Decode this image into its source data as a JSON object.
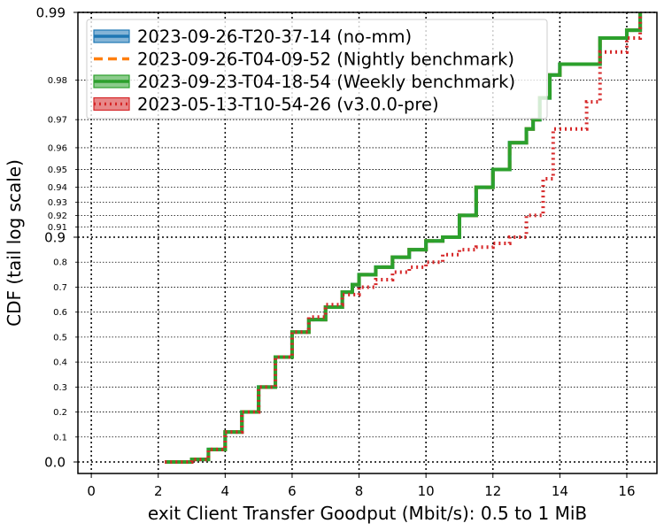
{
  "chart_data": {
    "type": "line",
    "title": "",
    "xlabel": "exit Client Transfer Goodput (Mbit/s): 0.5 to 1 MiB",
    "ylabel": "CDF (tail log scale)",
    "xlim": [
      -0.4,
      16.9
    ],
    "x_ticks": [
      "0",
      "2",
      "4",
      "6",
      "8",
      "10",
      "12",
      "14",
      "16"
    ],
    "y_scale": "tail log",
    "y_ticks_major": [
      "0.0",
      "0.9",
      "0.99"
    ],
    "y_ticks_minor": [
      "0.1",
      "0.2",
      "0.3",
      "0.4",
      "0.5",
      "0.6",
      "0.7",
      "0.8",
      "0.91",
      "0.92",
      "0.93",
      "0.94",
      "0.95",
      "0.96",
      "0.97",
      "0.98"
    ],
    "grid": true,
    "legend_position": "top-left",
    "series": [
      {
        "name": "2023-09-26-T20-37-14 (no-mm)",
        "color": "#1f77b4",
        "style": "solid",
        "x": [
          2.2,
          3.0,
          3.5,
          4.0,
          4.5,
          5.0,
          5.5,
          6.0,
          6.5,
          7.0,
          7.5,
          7.8,
          8.0,
          8.5,
          9.0,
          9.5,
          10.0,
          10.5,
          11.0,
          11.5,
          12.0,
          12.5,
          13.0,
          13.2,
          13.4,
          13.7,
          14.0,
          15.0,
          15.2,
          15.5,
          16.0,
          16.4
        ],
        "y": [
          0.0,
          0.01,
          0.05,
          0.12,
          0.2,
          0.3,
          0.42,
          0.52,
          0.57,
          0.62,
          0.68,
          0.71,
          0.75,
          0.78,
          0.82,
          0.85,
          0.885,
          0.9,
          0.92,
          0.94,
          0.95,
          0.962,
          0.967,
          0.97,
          0.976,
          0.981,
          0.983,
          0.983,
          0.987,
          0.987,
          0.988,
          0.99
        ]
      },
      {
        "name": "2023-09-26-T04-09-52 (Nightly benchmark)",
        "color": "#ff7f0e",
        "style": "dashed",
        "x": [
          2.2,
          3.0,
          3.5,
          4.0,
          4.5,
          5.0,
          5.5,
          6.0,
          6.5,
          7.0,
          7.5,
          7.8,
          8.0,
          8.5,
          9.0,
          9.5,
          10.0,
          10.5,
          11.0,
          11.5,
          12.0,
          12.5,
          13.0,
          13.2,
          13.4,
          13.7,
          14.0,
          15.0,
          15.2,
          15.5,
          16.0,
          16.4
        ],
        "y": [
          0.0,
          0.01,
          0.05,
          0.12,
          0.2,
          0.3,
          0.42,
          0.52,
          0.57,
          0.62,
          0.68,
          0.71,
          0.75,
          0.78,
          0.82,
          0.85,
          0.885,
          0.9,
          0.92,
          0.94,
          0.95,
          0.962,
          0.967,
          0.97,
          0.976,
          0.981,
          0.983,
          0.983,
          0.987,
          0.987,
          0.988,
          0.99
        ]
      },
      {
        "name": "2023-09-23-T04-18-54 (Weekly benchmark)",
        "color": "#2ca02c",
        "style": "dashdot",
        "x": [
          2.2,
          3.0,
          3.5,
          4.0,
          4.5,
          5.0,
          5.5,
          6.0,
          6.5,
          7.0,
          7.5,
          7.8,
          8.0,
          8.5,
          9.0,
          9.5,
          10.0,
          10.5,
          11.0,
          11.5,
          12.0,
          12.5,
          13.0,
          13.2,
          13.4,
          13.7,
          14.0,
          15.0,
          15.2,
          15.5,
          16.0,
          16.4
        ],
        "y": [
          0.0,
          0.01,
          0.05,
          0.12,
          0.2,
          0.3,
          0.42,
          0.52,
          0.57,
          0.62,
          0.68,
          0.71,
          0.75,
          0.78,
          0.82,
          0.85,
          0.885,
          0.9,
          0.92,
          0.94,
          0.95,
          0.962,
          0.967,
          0.97,
          0.976,
          0.981,
          0.983,
          0.983,
          0.987,
          0.987,
          0.988,
          0.99
        ]
      },
      {
        "name": "2023-05-13-T10-54-26 (v3.0.0-pre)",
        "color": "#d62728",
        "style": "dotted",
        "x": [
          2.2,
          3.0,
          3.5,
          4.0,
          4.5,
          5.0,
          5.5,
          6.0,
          6.5,
          7.0,
          7.5,
          8.0,
          8.5,
          9.0,
          9.5,
          10.0,
          10.5,
          11.0,
          11.5,
          12.0,
          12.5,
          13.0,
          13.5,
          13.8,
          14.5,
          14.8,
          15.2,
          16.0,
          16.4
        ],
        "y": [
          0.0,
          0.01,
          0.05,
          0.12,
          0.2,
          0.3,
          0.42,
          0.52,
          0.58,
          0.63,
          0.67,
          0.7,
          0.73,
          0.76,
          0.78,
          0.8,
          0.83,
          0.85,
          0.86,
          0.875,
          0.9,
          0.92,
          0.945,
          0.967,
          0.967,
          0.975,
          0.985,
          0.987,
          0.99
        ]
      }
    ]
  }
}
